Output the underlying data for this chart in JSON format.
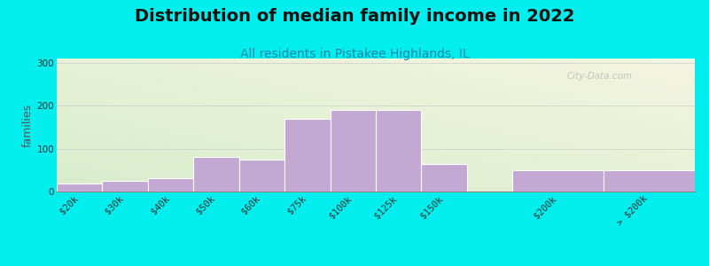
{
  "title": "Distribution of median family income in 2022",
  "subtitle": "All residents in Pistakee Highlands, IL",
  "ylabel": "families",
  "background_outer": "#00EEEE",
  "bar_color": "#C4A8D4",
  "bar_edge_color": "#FFFFFF",
  "categories": [
    "$20k",
    "$30k",
    "$40k",
    "$50k",
    "$60k",
    "$75k",
    "$100k",
    "$125k",
    "$150k",
    "$200k",
    "> $200k"
  ],
  "values": [
    18,
    25,
    32,
    80,
    75,
    170,
    190,
    190,
    65,
    50,
    50
  ],
  "bar_lefts": [
    0,
    1,
    2,
    3,
    4,
    5,
    6,
    7,
    8,
    10,
    12
  ],
  "bar_widths": [
    1,
    1,
    1,
    1,
    1,
    1,
    1,
    1,
    1,
    2,
    2
  ],
  "xlim": [
    0,
    14
  ],
  "ylim": [
    0,
    310
  ],
  "yticks": [
    0,
    100,
    200,
    300
  ],
  "xtick_positions": [
    0.5,
    1.5,
    2.5,
    3.5,
    4.5,
    5.5,
    6.5,
    7.5,
    8.5,
    11,
    13
  ],
  "watermark": "City-Data.com",
  "grid_color": "#CCCCCC",
  "title_fontsize": 14,
  "subtitle_fontsize": 10,
  "ylabel_fontsize": 9,
  "tick_fontsize": 7.5
}
